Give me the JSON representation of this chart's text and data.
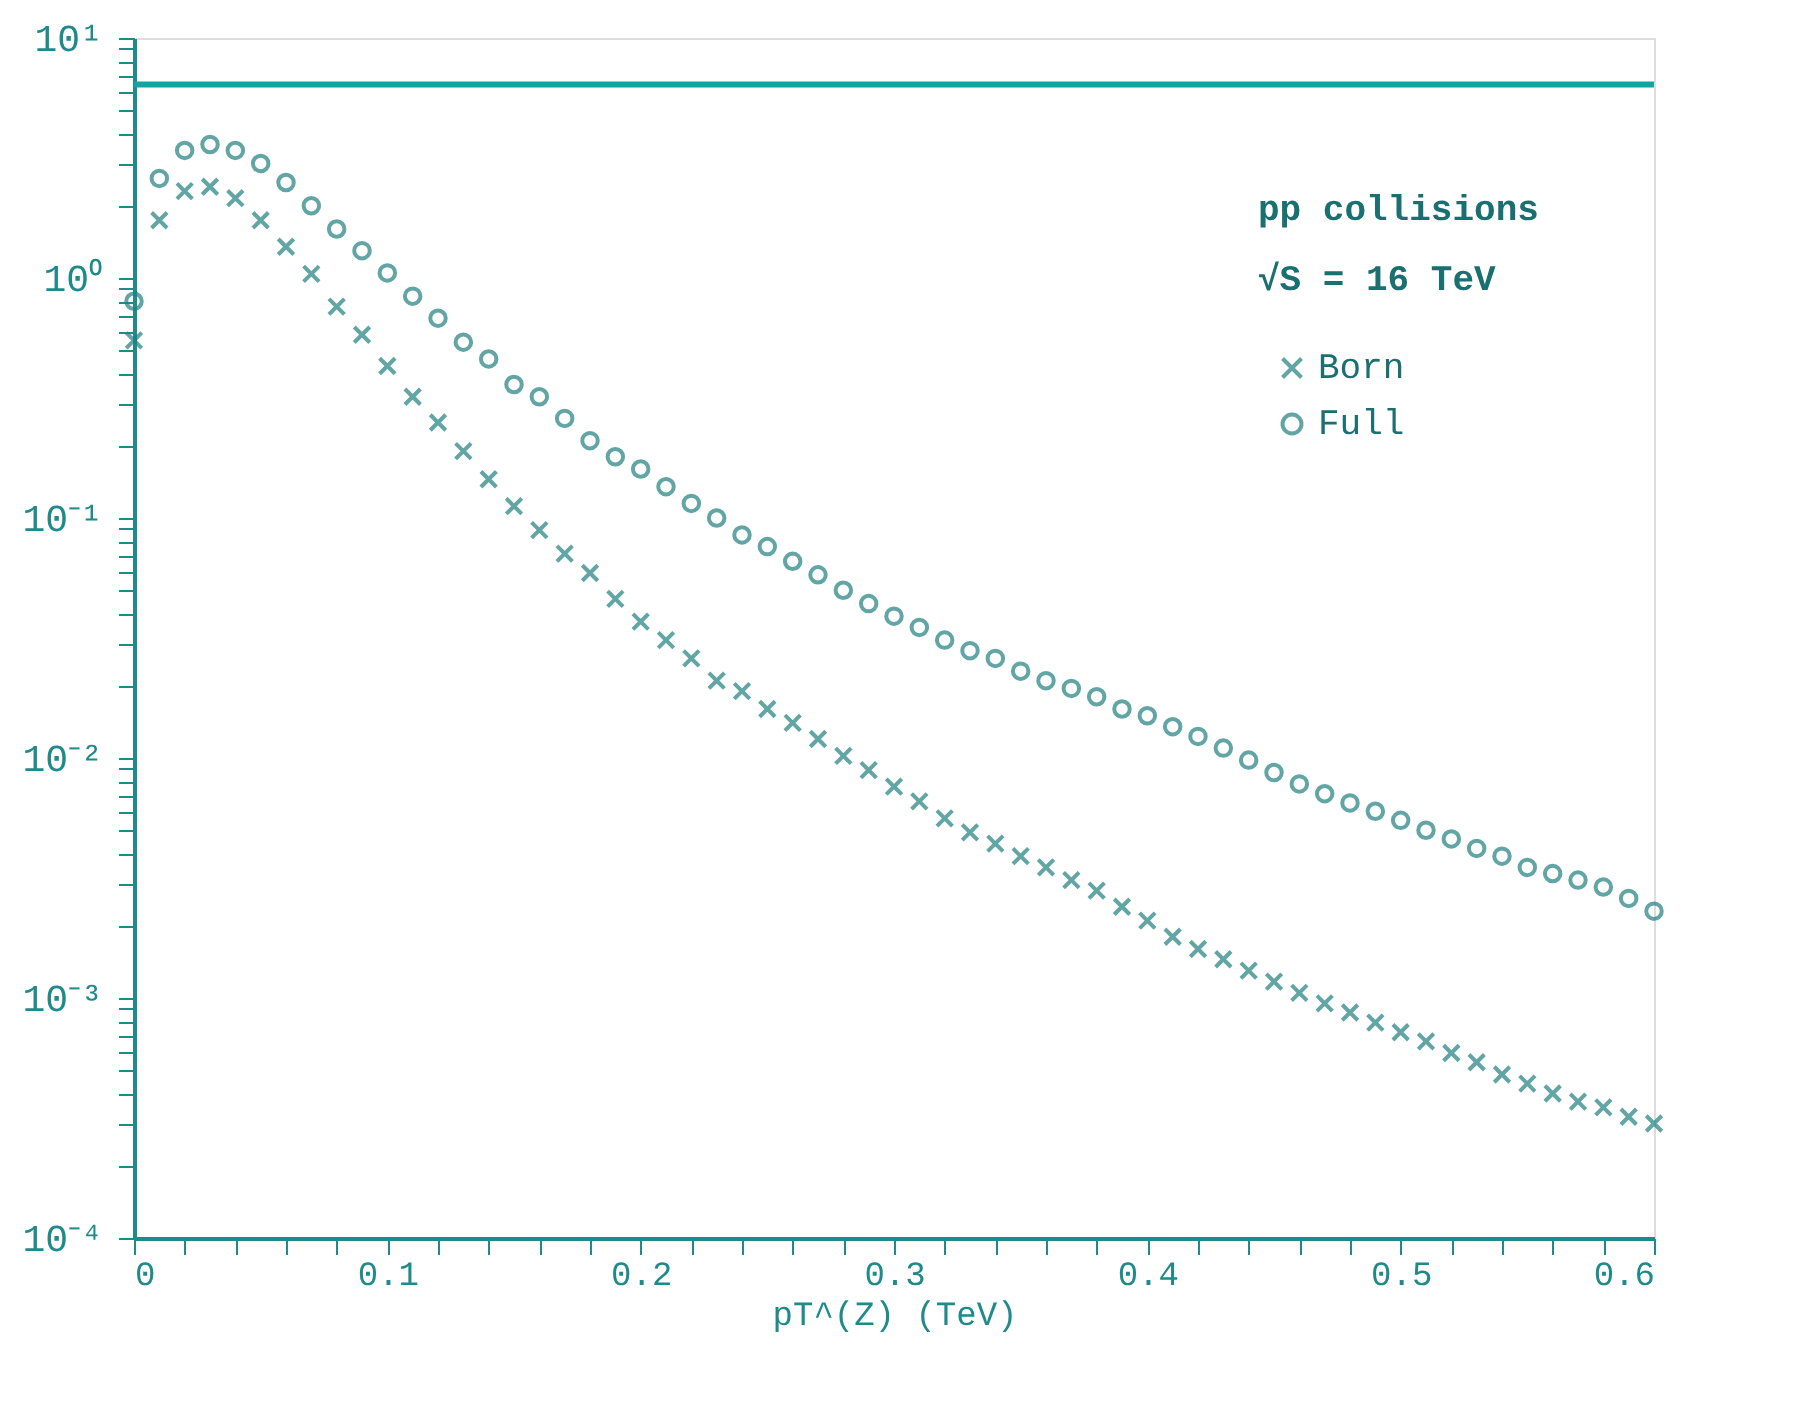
{
  "chart_data": {
    "type": "scatter",
    "xlabel": "pT^(Z) (TeV)",
    "annotations": [
      "pp collisions",
      "√S = 16 TeV"
    ],
    "x": [
      0,
      0.01,
      0.02,
      0.03,
      0.04,
      0.05,
      0.06,
      0.07,
      0.08,
      0.09,
      0.1,
      0.11,
      0.12,
      0.13,
      0.14,
      0.15,
      0.16,
      0.17,
      0.18,
      0.19,
      0.2,
      0.21,
      0.22,
      0.23,
      0.24,
      0.25,
      0.26,
      0.27,
      0.28,
      0.29,
      0.3,
      0.31,
      0.32,
      0.33,
      0.34,
      0.35,
      0.36,
      0.37,
      0.38,
      0.39,
      0.4,
      0.41,
      0.42,
      0.43,
      0.44,
      0.45,
      0.46,
      0.47,
      0.48,
      0.49,
      0.5,
      0.51,
      0.52,
      0.53,
      0.54,
      0.55,
      0.56,
      0.57,
      0.58,
      0.59,
      0.6
    ],
    "series": [
      {
        "name": "Born",
        "color": "#217f80",
        "marker": "cross",
        "values": [
          0.55,
          1.74,
          2.3,
          2.4,
          2.15,
          1.74,
          1.35,
          1.04,
          0.76,
          0.58,
          0.43,
          0.32,
          0.25,
          0.19,
          0.145,
          0.112,
          0.089,
          0.071,
          0.059,
          0.046,
          0.037,
          0.031,
          0.026,
          0.021,
          0.019,
          0.016,
          0.014,
          0.012,
          0.0102,
          0.0089,
          0.0076,
          0.0066,
          0.0056,
          0.0049,
          0.0044,
          0.0039,
          0.0035,
          0.0031,
          0.0028,
          0.0024,
          0.0021,
          0.0018,
          0.0016,
          0.00145,
          0.0013,
          0.00117,
          0.00105,
          0.00095,
          0.00087,
          0.00079,
          0.00072,
          0.00066,
          0.00059,
          0.00054,
          0.00048,
          0.00044,
          0.0004,
          0.00037,
          0.00035,
          0.00032,
          0.0003
        ]
      },
      {
        "name": "Full",
        "color": "#217f80",
        "marker": "circle",
        "values": [
          0.8,
          2.6,
          3.4,
          3.6,
          3.4,
          3.0,
          2.5,
          2.0,
          1.6,
          1.3,
          1.05,
          0.84,
          0.68,
          0.54,
          0.46,
          0.36,
          0.32,
          0.26,
          0.21,
          0.18,
          0.16,
          0.135,
          0.115,
          0.1,
          0.085,
          0.076,
          0.066,
          0.058,
          0.05,
          0.044,
          0.039,
          0.035,
          0.031,
          0.028,
          0.026,
          0.023,
          0.021,
          0.0195,
          0.018,
          0.016,
          0.015,
          0.0135,
          0.0123,
          0.011,
          0.0098,
          0.0087,
          0.0078,
          0.0071,
          0.0065,
          0.006,
          0.0055,
          0.005,
          0.0046,
          0.0042,
          0.0039,
          0.0035,
          0.0033,
          0.0031,
          0.0029,
          0.0026,
          0.0023
        ]
      }
    ],
    "log": true,
    "xlim": [
      0,
      0.6
    ],
    "xticks": [
      {
        "value": 0,
        "label": "0"
      },
      {
        "value": 0.02,
        "label": null
      },
      {
        "value": 0.04,
        "label": null
      },
      {
        "value": 0.06,
        "label": null
      },
      {
        "value": 0.08,
        "label": null
      },
      0.1,
      {
        "value": 0.12,
        "label": null
      },
      {
        "value": 0.14,
        "label": null
      },
      {
        "value": 0.16,
        "label": null
      },
      {
        "value": 0.18,
        "label": null
      },
      0.2,
      {
        "value": 0.22,
        "label": null
      },
      {
        "value": 0.24,
        "label": null
      },
      {
        "value": 0.26,
        "label": null
      },
      {
        "value": 0.28,
        "label": null
      },
      0.3,
      {
        "value": 0.32,
        "label": null
      },
      {
        "value": 0.34,
        "label": null
      },
      {
        "value": 0.36,
        "label": null
      },
      {
        "value": 0.38,
        "label": null
      },
      0.4,
      {
        "value": 0.42,
        "label": null
      },
      {
        "value": 0.44,
        "label": null
      },
      {
        "value": 0.46,
        "label": null
      },
      {
        "value": 0.48,
        "label": null
      },
      0.5,
      {
        "value": 0.52,
        "label": null
      },
      {
        "value": 0.54,
        "label": null
      },
      {
        "value": 0.56,
        "label": null
      },
      {
        "value": 0.58,
        "label": null
      },
      0.6
    ],
    "ylim": [
      0.0001,
      10
    ],
    "yticks": [
      {
        "value": 0.0001,
        "label": "10⁻⁴"
      },
      {
        "value": 0.0002,
        "label": null
      },
      {
        "value": 0.0003,
        "label": null
      },
      {
        "value": 0.0004,
        "label": null
      },
      {
        "value": 0.0005,
        "label": null
      },
      {
        "value": 0.0006,
        "label": null
      },
      {
        "value": 0.0007,
        "label": null
      },
      {
        "value": 0.0008,
        "label": null
      },
      {
        "value": 0.0009,
        "label": null
      },
      {
        "value": 0.001,
        "label": "10⁻³"
      },
      {
        "value": 0.002,
        "label": null
      },
      {
        "value": 0.003,
        "label": null
      },
      {
        "value": 0.004,
        "label": null
      },
      {
        "value": 0.005,
        "label": null
      },
      {
        "value": 0.006,
        "label": null
      },
      {
        "value": 0.007,
        "label": null
      },
      {
        "value": 0.008,
        "label": null
      },
      {
        "value": 0.009,
        "label": null
      },
      {
        "value": 0.01,
        "label": "10⁻²"
      },
      {
        "value": 0.02,
        "label": null
      },
      {
        "value": 0.03,
        "label": null
      },
      {
        "value": 0.04,
        "label": null
      },
      {
        "value": 0.05,
        "label": null
      },
      {
        "value": 0.06,
        "label": null
      },
      {
        "value": 0.07,
        "label": null
      },
      {
        "value": 0.08,
        "label": null
      },
      {
        "value": 0.09,
        "label": null
      },
      {
        "value": 0.1,
        "label": "10⁻¹"
      },
      {
        "value": 0.2,
        "label": null
      },
      {
        "value": 0.3,
        "label": null
      },
      {
        "value": 0.4,
        "label": null
      },
      {
        "value": 0.5,
        "label": null
      },
      {
        "value": 0.6,
        "label": null
      },
      {
        "value": 0.7,
        "label": null
      },
      {
        "value": 0.8,
        "label": null
      },
      {
        "value": 0.9,
        "label": null
      },
      {
        "value": 1,
        "label": "10⁰"
      },
      {
        "value": 2,
        "label": null
      },
      {
        "value": 3,
        "label": null
      },
      {
        "value": 4,
        "label": null
      },
      {
        "value": 5,
        "label": null
      },
      {
        "value": 6,
        "label": null
      },
      {
        "value": 7,
        "label": null
      },
      {
        "value": 8,
        "label": null
      },
      {
        "value": 9,
        "label": null
      },
      {
        "value": 10,
        "label": "10¹"
      }
    ],
    "ref_lines": [
      {
        "axis": "y",
        "value": 6.4,
        "color": "#13a3a3"
      }
    ],
    "grid": false,
    "legend": "top right"
  }
}
